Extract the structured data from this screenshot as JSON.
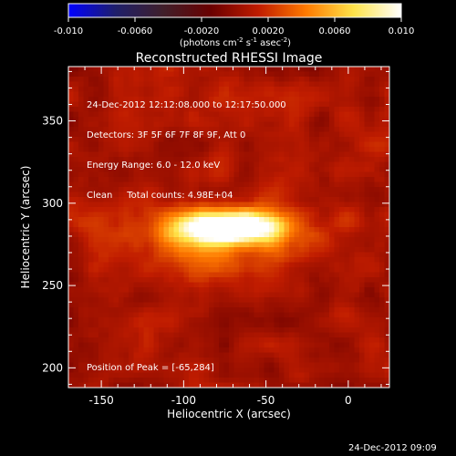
{
  "colorbar": {
    "ticks": [
      "-0.010",
      "-0.0060",
      "-0.0020",
      "0.0020",
      "0.0060",
      "0.010"
    ],
    "tick_values": [
      -0.01,
      -0.006,
      -0.002,
      0.002,
      0.006,
      0.01
    ],
    "range": [
      -0.01,
      0.01
    ],
    "units_prefix": "(photons cm",
    "units_sup1": "-2",
    "units_mid": " s",
    "units_sup2": "-1",
    "units_mid2": " asec",
    "units_sup3": "-2",
    "units_suffix": ")",
    "colors": [
      "#0000ff",
      "#1f1f6a",
      "#401f2a",
      "#6a0000",
      "#c01c00",
      "#ff7a00",
      "#ffe44a",
      "#ffffff"
    ]
  },
  "header": {
    "line1": "24-Dec-2012 12:12:08.000 to 12:17:50.000",
    "line2": "Detectors: 3F 5F 6F 7F 8F 9F, Att 0",
    "line3": "Energy Range: 6.0 - 12.0 keV",
    "line4": "Clean     Total counts: 4.98E+04"
  },
  "peak_label": "Position of Peak = [-65,284]",
  "timestamp": "24-Dec-2012 09:09",
  "chart_data": {
    "type": "heatmap",
    "title": "Reconstructed RHESSI Image",
    "xlabel": "Heliocentric X (arcsec)",
    "ylabel": "Heliocentric Y (arcsec)",
    "xlim": [
      -170,
      25
    ],
    "ylim": [
      188,
      383
    ],
    "xticks": [
      -150,
      -100,
      -50,
      0
    ],
    "yticks": [
      200,
      250,
      300,
      350
    ],
    "colorbar_range": [
      -0.01,
      0.01
    ],
    "peak": [
      -65,
      284
    ],
    "sources": [
      {
        "x": -72,
        "y": 285,
        "sx": 20,
        "sy": 6,
        "amp": 0.0115
      },
      {
        "x": -80,
        "y": 284,
        "sx": 42,
        "sy": 14,
        "amp": 0.0035
      },
      {
        "x": -70,
        "y": 262,
        "sx": 22,
        "sy": 14,
        "amp": 0.0012
      }
    ],
    "background_level": 0.0005
  }
}
